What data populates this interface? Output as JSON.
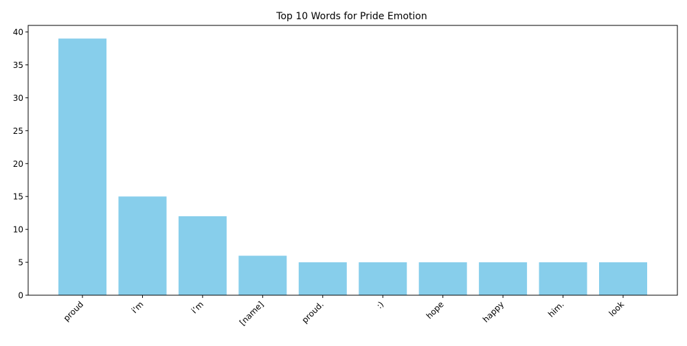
{
  "chart_data": {
    "type": "bar",
    "title": "Top 10 Words for Pride Emotion",
    "xlabel": "",
    "ylabel": "",
    "categories": [
      "proud",
      "i'm",
      "i’m",
      "[name]",
      "proud.",
      ":)",
      "hope",
      "happy",
      "him.",
      "look"
    ],
    "values": [
      39,
      15,
      12,
      6,
      5,
      5,
      5,
      5,
      5,
      5
    ],
    "ylim": [
      0,
      41
    ],
    "yticks": [
      0,
      5,
      10,
      15,
      20,
      25,
      30,
      35,
      40
    ],
    "bar_color": "#87ceeb",
    "grid": false,
    "legend": "none"
  }
}
